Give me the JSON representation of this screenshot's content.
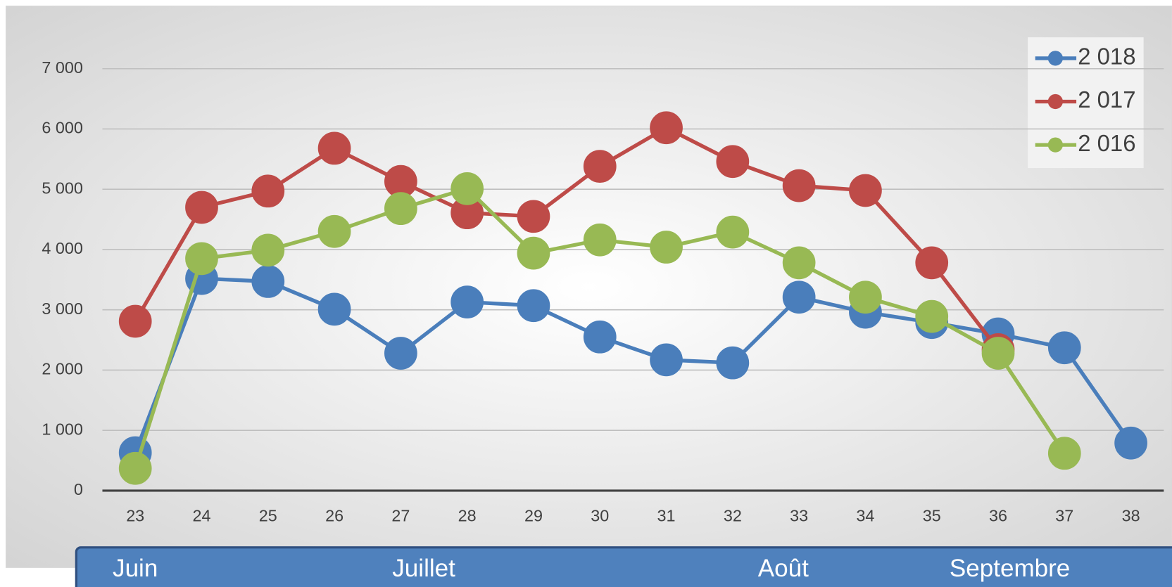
{
  "chart_data": {
    "type": "line",
    "categories": [
      "23",
      "24",
      "25",
      "26",
      "27",
      "28",
      "29",
      "30",
      "31",
      "32",
      "33",
      "34",
      "35",
      "36",
      "37",
      "38"
    ],
    "series": [
      {
        "name": "2 018",
        "color": "#4a7ebb",
        "values": [
          630,
          3520,
          3470,
          3010,
          2280,
          3130,
          3070,
          2550,
          2170,
          2120,
          3210,
          2960,
          2790,
          2600,
          2370,
          790
        ]
      },
      {
        "name": "2 017",
        "color": "#be4b48",
        "values": [
          2810,
          4700,
          4970,
          5680,
          5130,
          4610,
          4550,
          5380,
          6020,
          5460,
          5060,
          4980,
          3780,
          2340,
          null,
          null
        ]
      },
      {
        "name": "2 016",
        "color": "#98b954",
        "values": [
          370,
          3850,
          3990,
          4300,
          4680,
          5010,
          3940,
          4160,
          4040,
          4290,
          3780,
          3210,
          2890,
          2280,
          620,
          null
        ]
      }
    ],
    "ylim": [
      0,
      7000
    ],
    "yticks": [
      {
        "value": 0,
        "label": "0"
      },
      {
        "value": 1000,
        "label": "1 000"
      },
      {
        "value": 2000,
        "label": "2 000"
      },
      {
        "value": 3000,
        "label": "3 000"
      },
      {
        "value": 4000,
        "label": "4 000"
      },
      {
        "value": 5000,
        "label": "5 000"
      },
      {
        "value": 6000,
        "label": "6 000"
      },
      {
        "value": 7000,
        "label": "7 000"
      }
    ],
    "grid": true,
    "legend": "top-right",
    "month_labels": [
      "Juin",
      "Juillet",
      "Août",
      "Septembre"
    ]
  }
}
